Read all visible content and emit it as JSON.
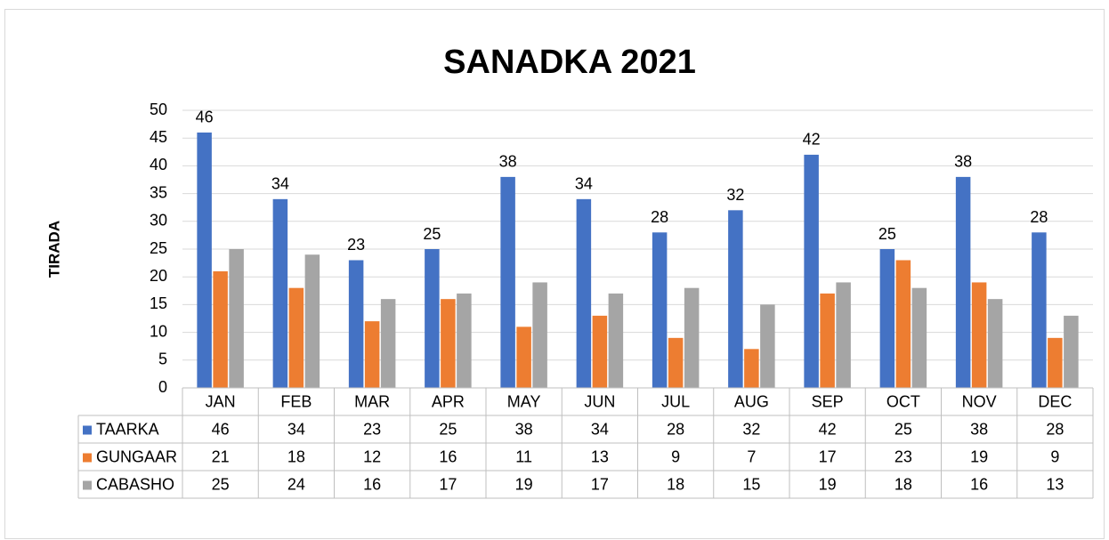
{
  "chart_data": {
    "type": "bar",
    "title": "SANADKA 2021",
    "y_label": "TIRADA",
    "categories": [
      "JAN",
      "FEB",
      "MAR",
      "APR",
      "MAY",
      "JUN",
      "JUL",
      "AUG",
      "SEP",
      "OCT",
      "NOV",
      "DEC"
    ],
    "series": [
      {
        "name": "TAARKA",
        "color": "#4472c4",
        "data_labels": true,
        "values": [
          46,
          34,
          23,
          25,
          38,
          34,
          28,
          32,
          42,
          25,
          38,
          28
        ]
      },
      {
        "name": "GUNGAAR",
        "color": "#ed7d31",
        "data_labels": false,
        "values": [
          21,
          18,
          12,
          16,
          11,
          13,
          9,
          7,
          17,
          23,
          19,
          9
        ]
      },
      {
        "name": "CABASHO",
        "color": "#a5a5a5",
        "data_labels": false,
        "values": [
          25,
          24,
          16,
          17,
          19,
          17,
          18,
          15,
          19,
          18,
          16,
          13
        ]
      }
    ],
    "ylim": [
      0,
      50
    ],
    "yticks": [
      0,
      5,
      10,
      15,
      20,
      25,
      30,
      35,
      40,
      45,
      50
    ],
    "grid": true,
    "data_table": true
  }
}
